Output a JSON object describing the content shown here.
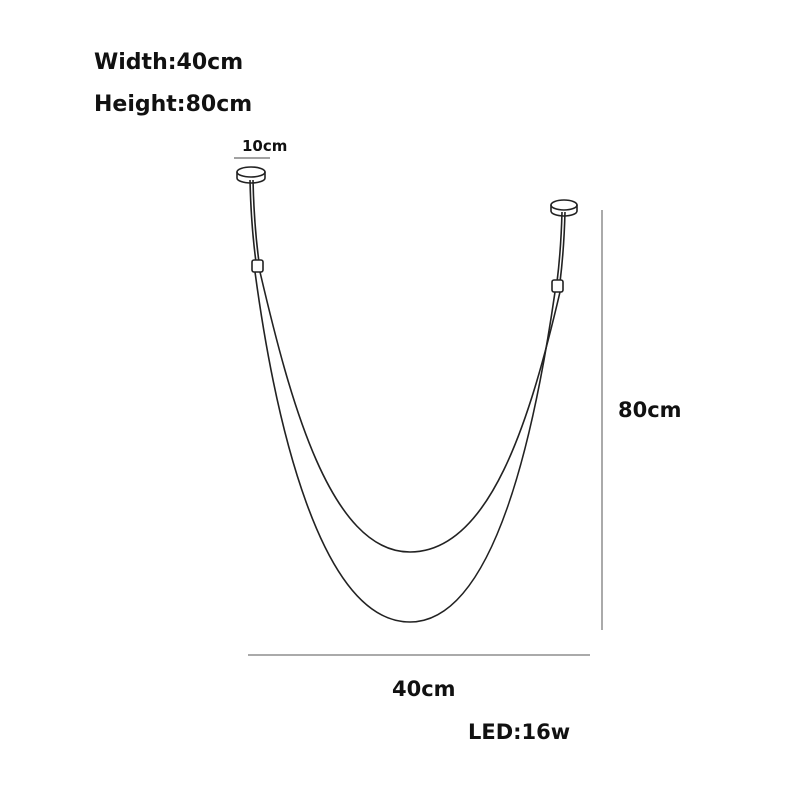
{
  "specs": {
    "width": "Width:40cm",
    "height": "Height:80cm",
    "led": "LED:16w"
  },
  "dimensions": {
    "canopy": "10cm",
    "vertical": "80cm",
    "horizontal": "40cm"
  },
  "colors": {
    "line": "#222222",
    "dimension_line": "#555555"
  }
}
